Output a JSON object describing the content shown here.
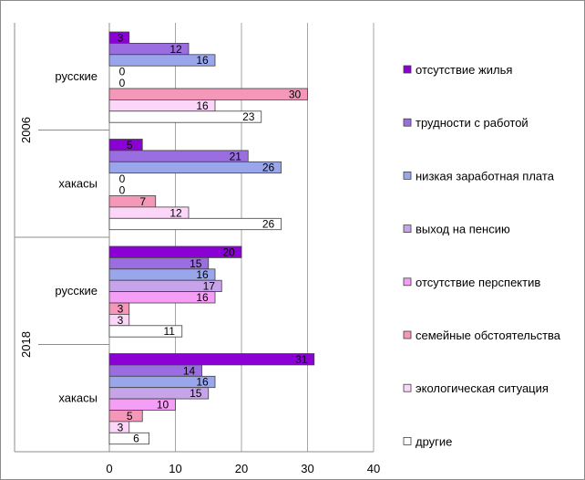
{
  "chart_data": {
    "type": "bar",
    "orientation": "horizontal",
    "grid": true,
    "legend_placement": "right",
    "xlim": [
      0,
      40
    ],
    "xticks": [
      0,
      10,
      20,
      30,
      40
    ],
    "series": [
      {
        "name": "отсутствие жилья",
        "color": "#8b00d4"
      },
      {
        "name": "трудности с работой",
        "color": "#9a6ee0"
      },
      {
        "name": "низкая заработная плата",
        "color": "#9aa6ec"
      },
      {
        "name": "выход на пенсию",
        "color": "#c7a3ea"
      },
      {
        "name": "отсутствие перспектив",
        "color": "#f59ef5"
      },
      {
        "name": "семейные обстоятельства",
        "color": "#f497b8"
      },
      {
        "name": "экологическая ситуация",
        "color": "#fcd6f8"
      },
      {
        "name": "другие",
        "color": "#ffffff"
      }
    ],
    "groups": [
      {
        "year": "2006",
        "categories": [
          {
            "label": "русские",
            "values": [
              3,
              12,
              16,
              0,
              0,
              30,
              16,
              23
            ]
          },
          {
            "label": "хакасы",
            "values": [
              5,
              21,
              26,
              0,
              0,
              7,
              12,
              26
            ]
          }
        ]
      },
      {
        "year": "2018",
        "categories": [
          {
            "label": "русские",
            "values": [
              20,
              15,
              16,
              17,
              16,
              3,
              3,
              11
            ]
          },
          {
            "label": "хакасы",
            "values": [
              31,
              14,
              16,
              15,
              10,
              5,
              3,
              6
            ]
          }
        ]
      }
    ]
  }
}
